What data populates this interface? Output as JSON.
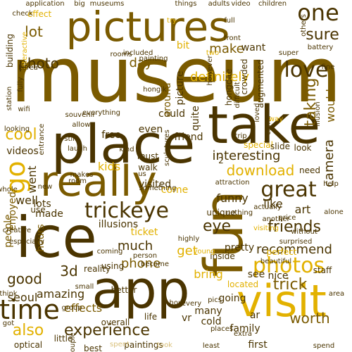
{
  "colors": {
    "gold": "#e2b100",
    "brown": "#7a5a00",
    "dark": "#4a3400",
    "light": "#d9c07a"
  },
  "words": [
    {
      "text": "museum",
      "color": "#7a5a00"
    },
    {
      "text": "pictures",
      "color": "#7a5a00"
    },
    {
      "text": "place",
      "color": "#4a3400"
    },
    {
      "text": "take",
      "color": "#4a3400"
    },
    {
      "text": "ice",
      "color": "#4a3400"
    },
    {
      "text": "fun",
      "color": "#7a5a00"
    },
    {
      "text": "app",
      "color": "#4a3400"
    },
    {
      "text": "really",
      "color": "#7a5a00"
    },
    {
      "text": "visit",
      "color": "#e2b100"
    },
    {
      "text": "trickeye",
      "color": "#4a3400"
    },
    {
      "text": "time",
      "color": "#4a3400"
    },
    {
      "text": "great",
      "color": "#4a3400"
    },
    {
      "text": "photos",
      "color": "#e2b100"
    },
    {
      "text": "download",
      "color": "#e2b100"
    },
    {
      "text": "experience",
      "color": "#4a3400"
    },
    {
      "text": "go",
      "color": "#e2b100"
    },
    {
      "text": "one",
      "color": "#4a3400"
    },
    {
      "text": "sure",
      "color": "#4a3400"
    },
    {
      "text": "love",
      "color": "#4a3400"
    },
    {
      "text": "make",
      "color": "#7a5a00"
    },
    {
      "text": "photo",
      "color": "#4a3400"
    },
    {
      "text": "lot",
      "color": "#7a5a00"
    },
    {
      "text": "day",
      "color": "#7a5a00"
    },
    {
      "text": "definitely",
      "color": "#e2b100"
    },
    {
      "text": "taking",
      "color": "#7a5a00"
    },
    {
      "text": "would",
      "color": "#7a5a00"
    },
    {
      "text": "friends",
      "color": "#4a3400"
    },
    {
      "text": "recommend",
      "color": "#4a3400"
    },
    {
      "text": "trick",
      "color": "#7a5a00"
    },
    {
      "text": "good",
      "color": "#4a3400"
    },
    {
      "text": "3d",
      "color": "#4a3400"
    },
    {
      "text": "eye",
      "color": "#4a3400"
    },
    {
      "text": "much",
      "color": "#4a3400"
    },
    {
      "text": "phone",
      "color": "#7a5a00"
    },
    {
      "text": "get",
      "color": "#e2b100"
    },
    {
      "text": "worth",
      "color": "#7a5a00"
    },
    {
      "text": "also",
      "color": "#e2b100"
    },
    {
      "text": "seoul",
      "color": "#4a3400"
    },
    {
      "text": "cool",
      "color": "#e2b100"
    },
    {
      "text": "kids",
      "color": "#e2b100"
    },
    {
      "text": "people",
      "color": "#7a5a00"
    },
    {
      "text": "well",
      "color": "#4a3400"
    },
    {
      "text": "lots",
      "color": "#4a3400"
    },
    {
      "text": "interesting",
      "color": "#4a3400"
    },
    {
      "text": "funny",
      "color": "#4a3400"
    },
    {
      "text": "like",
      "color": "#4a3400"
    },
    {
      "text": "art",
      "color": "#4a3400"
    },
    {
      "text": "camera",
      "color": "#4a3400"
    },
    {
      "text": "amazing",
      "color": "#4a3400"
    },
    {
      "text": "effects",
      "color": "#7a5a00"
    },
    {
      "text": "videos",
      "color": "#4a3400"
    },
    {
      "text": "free",
      "color": "#4a3400"
    },
    {
      "text": "even",
      "color": "#4a3400"
    },
    {
      "text": "friend",
      "color": "#4a3400"
    },
    {
      "text": "went",
      "color": "#4a3400"
    },
    {
      "text": "enjoyed",
      "color": "#7a5a00"
    },
    {
      "text": "illusions",
      "color": "#4a3400"
    },
    {
      "text": "hours",
      "color": "#7a5a00"
    },
    {
      "text": "nice",
      "color": "#4a3400"
    },
    {
      "text": "see",
      "color": "#4a3400"
    },
    {
      "text": "bring",
      "color": "#e2b100"
    },
    {
      "text": "going",
      "color": "#4a3400"
    },
    {
      "text": "many",
      "color": "#4a3400"
    },
    {
      "text": "cold",
      "color": "#4a3400"
    },
    {
      "text": "vr",
      "color": "#4a3400"
    },
    {
      "text": "family",
      "color": "#4a3400"
    },
    {
      "text": "first",
      "color": "#4a3400"
    },
    {
      "text": "ar",
      "color": "#4a3400"
    },
    {
      "text": "could",
      "color": "#4a3400"
    },
    {
      "text": "around",
      "color": "#7a5a00"
    },
    {
      "text": "quite",
      "color": "#4a3400"
    },
    {
      "text": "picture",
      "color": "#4a3400"
    },
    {
      "text": "bit",
      "color": "#e2b100"
    },
    {
      "text": "want",
      "color": "#4a3400"
    },
    {
      "text": "ticket",
      "color": "#e2b100"
    },
    {
      "text": "made",
      "color": "#4a3400"
    },
    {
      "text": "use",
      "color": "#4a3400"
    },
    {
      "text": "visited",
      "color": "#4a3400"
    },
    {
      "text": "come",
      "color": "#e2b100"
    },
    {
      "text": "pretty",
      "color": "#4a3400"
    },
    {
      "text": "unique",
      "color": "#4a3400"
    },
    {
      "text": "using",
      "color": "#4a3400"
    },
    {
      "text": "better",
      "color": "#4a3400"
    },
    {
      "text": "life",
      "color": "#4a3400"
    },
    {
      "text": "little",
      "color": "#4a3400"
    },
    {
      "text": "optical",
      "color": "#4a3400"
    },
    {
      "text": "paintings",
      "color": "#4a3400"
    },
    {
      "text": "best",
      "color": "#4a3400"
    },
    {
      "text": "must",
      "color": "#4a3400"
    },
    {
      "text": "walk",
      "color": "#4a3400"
    },
    {
      "text": "2",
      "color": "#4a3400"
    },
    {
      "text": "special",
      "color": "#e2b100"
    },
    {
      "text": "slide",
      "color": "#4a3400"
    },
    {
      "text": "look",
      "color": "#4a3400"
    },
    {
      "text": "need",
      "color": "#4a3400"
    },
    {
      "text": "inside",
      "color": "#4a3400"
    },
    {
      "text": "staff",
      "color": "#4a3400"
    },
    {
      "text": "perfect",
      "color": "#e2b100"
    },
    {
      "text": "located",
      "color": "#e2b100"
    },
    {
      "text": "reality",
      "color": "#4a3400"
    },
    {
      "text": "overall",
      "color": "#4a3400"
    },
    {
      "text": "places",
      "color": "#4a3400"
    },
    {
      "text": "hongdae",
      "color": "#4a3400"
    },
    {
      "text": "crowded",
      "color": "#4a3400"
    },
    {
      "text": "augmented",
      "color": "#4a3400"
    },
    {
      "text": "application",
      "color": "#4a3400"
    },
    {
      "text": "big",
      "color": "#4a3400"
    },
    {
      "text": "museums",
      "color": "#4a3400"
    },
    {
      "text": "things",
      "color": "#4a3400"
    },
    {
      "text": "adults",
      "color": "#4a3400"
    },
    {
      "text": "video",
      "color": "#4a3400"
    },
    {
      "text": "children",
      "color": "#4a3400"
    },
    {
      "text": "effect",
      "color": "#e2b100"
    },
    {
      "text": "building",
      "color": "#4a3400"
    },
    {
      "text": "interactive",
      "color": "#e2b100"
    },
    {
      "text": "rooms",
      "color": "#4a3400"
    },
    {
      "text": "included",
      "color": "#4a3400"
    },
    {
      "text": "station",
      "color": "#4a3400"
    },
    {
      "text": "looking",
      "color": "#4a3400"
    },
    {
      "text": "kind",
      "color": "#4a3400"
    },
    {
      "text": "makes",
      "color": "#4a3400"
    },
    {
      "text": "especially",
      "color": "#4a3400"
    },
    {
      "text": "think",
      "color": "#4a3400"
    },
    {
      "text": "got",
      "color": "#4a3400"
    },
    {
      "text": "every",
      "color": "#4a3400"
    },
    {
      "text": "hour",
      "color": "#4a3400"
    },
    {
      "text": "spent",
      "color": "#d9c07a"
    },
    {
      "text": "took",
      "color": "#d9c07a"
    },
    {
      "text": "young",
      "color": "#e2b100"
    },
    {
      "text": "visiting",
      "color": "#e2b100"
    },
    {
      "text": "price",
      "color": "#4a3400"
    },
    {
      "text": "attraction",
      "color": "#4a3400"
    },
    {
      "text": "highly",
      "color": "#4a3400"
    },
    {
      "text": "difficult",
      "color": "#4a3400"
    },
    {
      "text": "try",
      "color": "#e2b100"
    },
    {
      "text": "full",
      "color": "#4a3400"
    },
    {
      "text": "two",
      "color": "#e2b100"
    },
    {
      "text": "battery",
      "color": "#4a3400"
    },
    {
      "text": "however",
      "color": "#4a3400"
    },
    {
      "text": "korea",
      "color": "#4a3400"
    },
    {
      "text": "check",
      "color": "#4a3400"
    },
    {
      "text": "us",
      "color": "#4a3400"
    },
    {
      "text": "least",
      "color": "#4a3400"
    },
    {
      "text": "pics",
      "color": "#4a3400"
    },
    {
      "text": "extra",
      "color": "#4a3400"
    },
    {
      "text": "front",
      "color": "#4a3400"
    },
    {
      "text": "others",
      "color": "#4a3400"
    },
    {
      "text": "super",
      "color": "#4a3400"
    },
    {
      "text": "came",
      "color": "#4a3400"
    },
    {
      "text": "fine",
      "color": "#4a3400"
    },
    {
      "text": "illusion",
      "color": "#4a3400"
    },
    {
      "text": "way",
      "color": "#e2b100"
    },
    {
      "text": "trip",
      "color": "#4a3400"
    },
    {
      "text": "painting",
      "color": "#4a3400"
    },
    {
      "text": "sculptures",
      "color": "#4a3400"
    },
    {
      "text": "fully",
      "color": "#4a3400"
    },
    {
      "text": "couple",
      "color": "#4a3400"
    },
    {
      "text": "group",
      "color": "#4a3400"
    },
    {
      "text": "small",
      "color": "#4a3400"
    },
    {
      "text": "still",
      "color": "#4a3400"
    },
    {
      "text": "laugh",
      "color": "#4a3400"
    },
    {
      "text": "area",
      "color": "#4a3400"
    },
    {
      "text": "spend",
      "color": "#4a3400"
    },
    {
      "text": "creative",
      "color": "#4a3400"
    },
    {
      "text": "whole",
      "color": "#4a3400"
    },
    {
      "text": "help",
      "color": "#4a3400"
    },
    {
      "text": "alone",
      "color": "#4a3400"
    },
    {
      "text": "actually",
      "color": "#4a3400"
    },
    {
      "text": "without",
      "color": "#4a3400"
    },
    {
      "text": "become",
      "color": "#4a3400"
    },
    {
      "text": "beautiful",
      "color": "#4a3400"
    },
    {
      "text": "surprised",
      "color": "#4a3400"
    },
    {
      "text": "another",
      "color": "#4a3400"
    },
    {
      "text": "entrance",
      "color": "#4a3400"
    },
    {
      "text": "loved",
      "color": "#4a3400"
    },
    {
      "text": "something",
      "color": "#4a3400"
    },
    {
      "text": "coming",
      "color": "#4a3400"
    },
    {
      "text": "person",
      "color": "#4a3400"
    },
    {
      "text": "everything",
      "color": "#4a3400"
    },
    {
      "text": "wifi",
      "color": "#4a3400"
    },
    {
      "text": "room",
      "color": "#4a3400"
    },
    {
      "text": "new",
      "color": "#4a3400"
    },
    {
      "text": "nothing",
      "color": "#4a3400"
    },
    {
      "text": "hongik",
      "color": "#4a3400"
    },
    {
      "text": "souvenir",
      "color": "#4a3400"
    },
    {
      "text": "allows",
      "color": "#4a3400"
    },
    {
      "text": "fact",
      "color": "#4a3400"
    }
  ]
}
